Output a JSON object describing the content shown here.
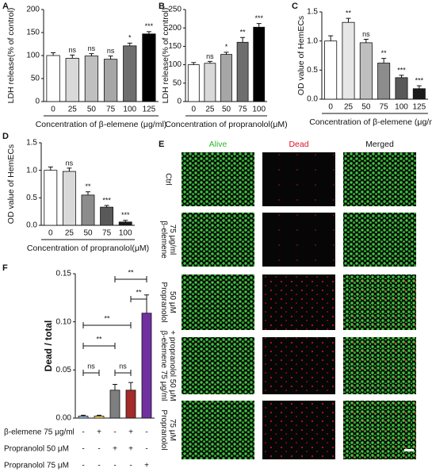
{
  "chart_data": [
    {
      "type": "bar",
      "panel_label": "A",
      "ylabel": "LDH release(% of control)",
      "xlabel": "Concentration of β-elemene (μg/ml)",
      "categories": [
        "0",
        "25",
        "50",
        "75",
        "100",
        "125"
      ],
      "values": [
        100,
        94,
        99,
        92,
        121,
        147
      ],
      "errors": [
        6,
        7,
        5,
        7,
        6,
        5
      ],
      "annotations": [
        null,
        "ns",
        "ns",
        "ns",
        "*",
        "***"
      ],
      "colors": [
        "#ffffff",
        "#d9d9d9",
        "#bfbfbf",
        "#a6a6a6",
        "#6e6e6e",
        "#000000"
      ],
      "ylim": [
        0,
        200
      ],
      "yticks": [
        0,
        50,
        100,
        150,
        200
      ]
    },
    {
      "type": "bar",
      "panel_label": "B",
      "ylabel": "LDH release(% of control)",
      "xlabel": "Concentration of propranolol(μM)",
      "categories": [
        "0",
        "25",
        "50",
        "75",
        "100"
      ],
      "values": [
        100,
        104,
        128,
        161,
        202
      ],
      "errors": [
        6,
        5,
        6,
        13,
        10
      ],
      "annotations": [
        null,
        "ns",
        "*",
        "**",
        "***"
      ],
      "colors": [
        "#ffffff",
        "#d9d9d9",
        "#a6a6a6",
        "#6e6e6e",
        "#000000"
      ],
      "ylim": [
        0,
        250
      ],
      "yticks": [
        0,
        50,
        100,
        150,
        200,
        250
      ]
    },
    {
      "type": "bar",
      "panel_label": "C",
      "ylabel": "OD value of HemECs",
      "xlabel": "Concentration of β-elemene (μg/ml)",
      "categories": [
        "0",
        "25",
        "50",
        "75",
        "100",
        "125"
      ],
      "values": [
        1.0,
        1.32,
        0.97,
        0.62,
        0.37,
        0.18
      ],
      "errors": [
        0.09,
        0.07,
        0.06,
        0.08,
        0.04,
        0.05
      ],
      "annotations": [
        null,
        "**",
        "ns",
        "**",
        "***",
        "***"
      ],
      "colors": [
        "#ffffff",
        "#e6e6e6",
        "#bfbfbf",
        "#8c8c8c",
        "#595959",
        "#1a1a1a"
      ],
      "ylim": [
        0,
        1.5
      ],
      "yticks": [
        {
          "value": 0,
          "label": "0.0"
        },
        0.5,
        {
          "value": 1,
          "label": "1.0"
        },
        1.5
      ]
    },
    {
      "type": "bar",
      "panel_label": "D",
      "ylabel": "OD value of HemECs",
      "xlabel": "Concentration of propranolol(μM)",
      "categories": [
        "0",
        "25",
        "50",
        "75",
        "100"
      ],
      "values": [
        1.0,
        0.98,
        0.55,
        0.33,
        0.06
      ],
      "errors": [
        0.06,
        0.06,
        0.06,
        0.03,
        0.03
      ],
      "annotations": [
        null,
        "ns",
        "**",
        "***",
        "***"
      ],
      "colors": [
        "#ffffff",
        "#d9d9d9",
        "#8c8c8c",
        "#595959",
        "#1a1a1a"
      ],
      "ylim": [
        0,
        1.5
      ],
      "yticks": [
        {
          "value": 0,
          "label": "0.0"
        },
        0.5,
        {
          "value": 1,
          "label": "1.0"
        },
        1.5
      ]
    },
    {
      "type": "bar",
      "panel_label": "F",
      "ylabel": "Dead / total",
      "values": [
        0.002,
        0.002,
        0.029,
        0.029,
        0.109
      ],
      "errors": [
        0.001,
        0.001,
        0.006,
        0.008,
        0.019
      ],
      "colors": [
        "#9dc3e6",
        "#ffd966",
        "#7f7f7f",
        "#a52a2a",
        "#7030a0"
      ],
      "ylim": [
        0,
        0.15
      ],
      "yticks": [
        {
          "value": 0,
          "label": "0.00"
        },
        0.05,
        {
          "value": 0.1,
          "label": "0.10"
        },
        0.15
      ],
      "comparisons": [
        {
          "bars": [
            0,
            1
          ],
          "label": "ns"
        },
        {
          "bars": [
            2,
            3
          ],
          "label": "ns"
        },
        {
          "bars": [
            0,
            2
          ],
          "label": "**"
        },
        {
          "bars": [
            0,
            3
          ],
          "label": "**"
        },
        {
          "bars": [
            3,
            4
          ],
          "label": "**"
        },
        {
          "bars": [
            2,
            4
          ],
          "label": "**"
        }
      ],
      "treatments": [
        {
          "name": "β-elemene 75 μg/ml",
          "signs": [
            "-",
            "+",
            "-",
            "+",
            "-"
          ]
        },
        {
          "name": "Propranolol 50 μM",
          "signs": [
            "-",
            "-",
            "+",
            "+",
            "-"
          ]
        },
        {
          "name": "Propranolol 75 μM",
          "signs": [
            "-",
            "-",
            "-",
            "-",
            "+"
          ]
        }
      ]
    }
  ],
  "panel_e": {
    "panel_label": "E",
    "columns": [
      {
        "name": "Alive",
        "color": "#2db82d"
      },
      {
        "name": "Dead",
        "color": "#e0102a"
      },
      {
        "name": "Merged",
        "color": "#111111"
      }
    ],
    "rows": [
      [
        "Ctrl"
      ],
      [
        "β-elemene",
        "75 μg/ml"
      ],
      [
        "Propranolol",
        "50 μM"
      ],
      [
        "β-elemene 75 μg/ml",
        "+ propranolol 50 μM"
      ],
      [
        "Propranolol",
        "75 μM"
      ]
    ]
  }
}
